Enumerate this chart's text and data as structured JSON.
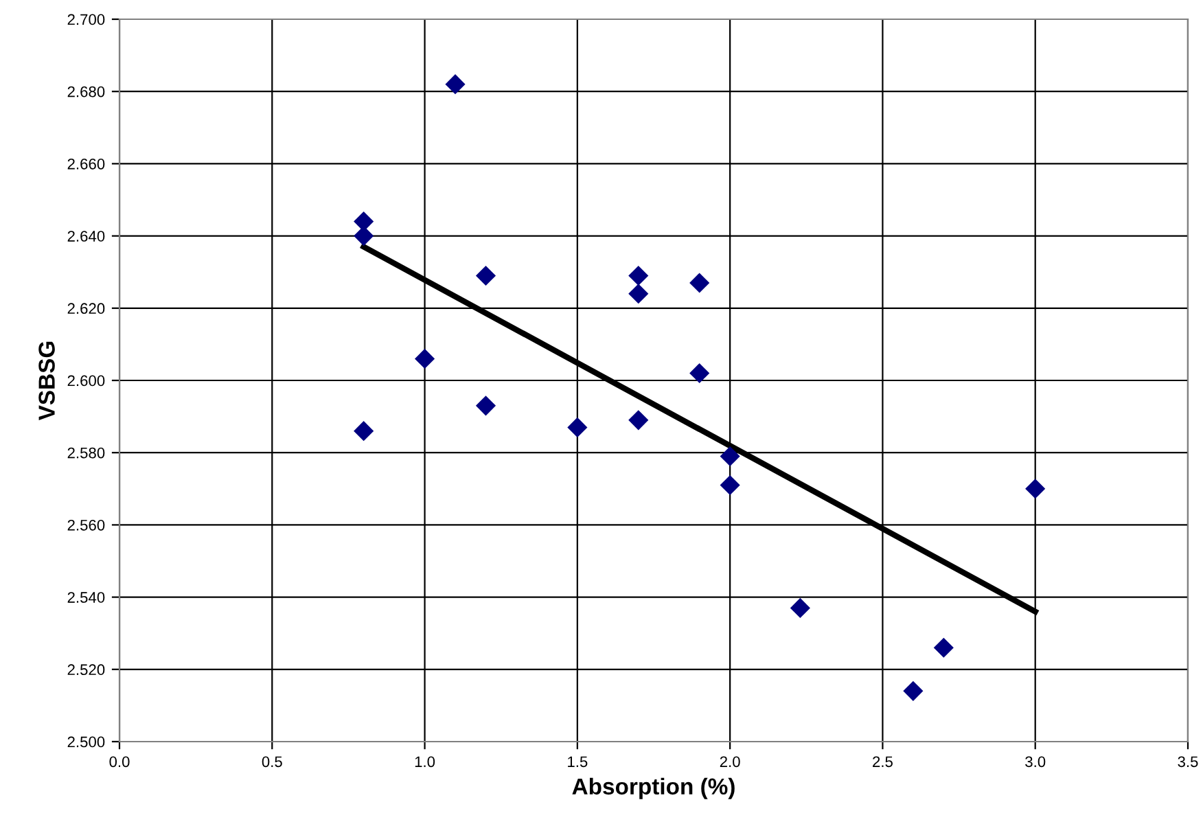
{
  "chart_data": {
    "type": "scatter",
    "xlabel": "Absorption (%)",
    "ylabel": "VSBSG",
    "series": [
      {
        "color": "#000080",
        "marker": "diamond",
        "x": [
          0.8,
          0.8,
          0.8,
          1.0,
          1.1,
          1.2,
          1.2,
          1.5,
          1.7,
          1.7,
          1.7,
          1.9,
          1.9,
          2.0,
          2.0,
          2.23,
          2.6,
          2.7,
          3.0
        ],
        "values": [
          2.644,
          2.64,
          2.586,
          2.606,
          2.682,
          2.629,
          2.593,
          2.587,
          2.629,
          2.624,
          2.589,
          2.627,
          2.602,
          2.579,
          2.571,
          2.537,
          2.514,
          2.526,
          2.57
        ]
      },
      {
        "type": "line",
        "color": "#000000",
        "marker": "none",
        "line_style": "solid",
        "x": [
          0.8,
          3.0
        ],
        "values": [
          2.637,
          2.536
        ]
      }
    ],
    "xlim": [
      0.0,
      3.5
    ],
    "ylim": [
      2.5,
      2.7
    ],
    "xticks": [
      {
        "value": 0,
        "label": "0.0"
      },
      {
        "value": 0.5,
        "label": "0.5"
      },
      {
        "value": 1,
        "label": "1.0"
      },
      {
        "value": 1.5,
        "label": "1.5"
      },
      {
        "value": 2,
        "label": "2.0"
      },
      {
        "value": 2.5,
        "label": "2.5"
      },
      {
        "value": 3,
        "label": "3.0"
      },
      {
        "value": 3.5,
        "label": "3.5"
      }
    ],
    "yticks": [
      {
        "value": 2.5,
        "label": "2.500"
      },
      {
        "value": 2.52,
        "label": "2.520"
      },
      {
        "value": 2.54,
        "label": "2.540"
      },
      {
        "value": 2.56,
        "label": "2.560"
      },
      {
        "value": 2.58,
        "label": "2.580"
      },
      {
        "value": 2.6,
        "label": "2.600"
      },
      {
        "value": 2.62,
        "label": "2.620"
      },
      {
        "value": 2.64,
        "label": "2.640"
      },
      {
        "value": 2.66,
        "label": "2.660"
      },
      {
        "value": 2.68,
        "label": "2.680"
      },
      {
        "value": 2.7,
        "label": "2.700"
      }
    ],
    "grid": true
  }
}
